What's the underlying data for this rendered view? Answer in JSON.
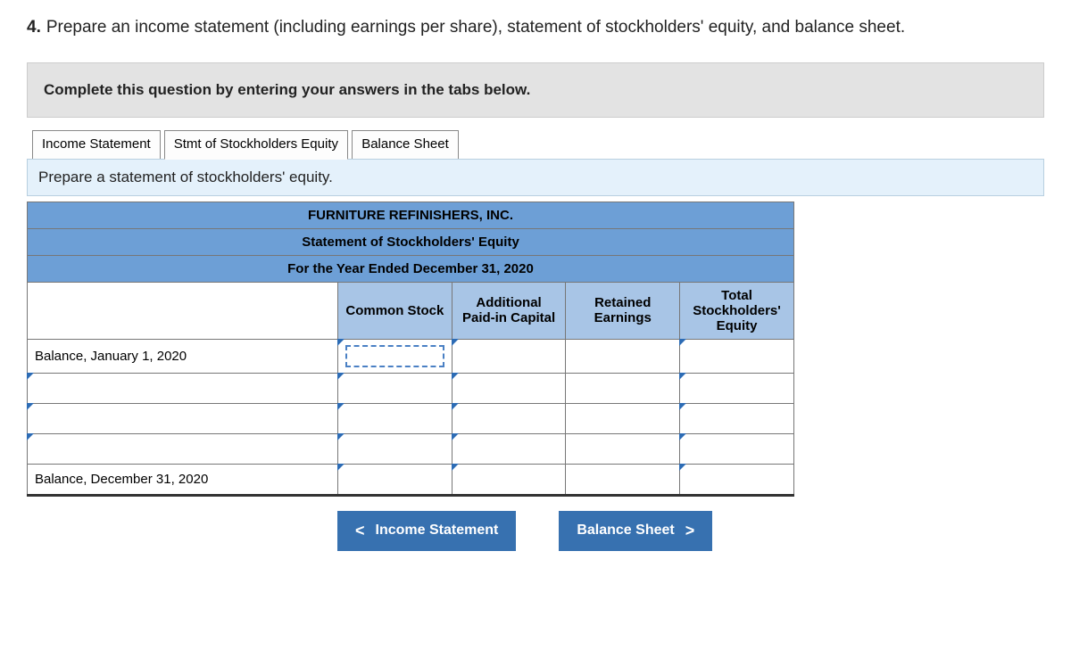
{
  "question": {
    "number": "4.",
    "text": "Prepare an income statement (including earnings per share), statement of stockholders' equity, and balance sheet."
  },
  "instruction_bar": "Complete this question by entering your answers in the tabs below.",
  "tabs": [
    {
      "label": "Income Statement",
      "active": false
    },
    {
      "label": "Stmt of Stockholders Equity",
      "active": true
    },
    {
      "label": "Balance Sheet",
      "active": false
    }
  ],
  "sub_instruction": "Prepare a statement of stockholders' equity.",
  "table": {
    "title_company": "FURNITURE REFINISHERS, INC.",
    "title_statement": "Statement of Stockholders' Equity",
    "title_period": "For the Year Ended December 31, 2020",
    "columns": [
      "Common Stock",
      "Additional Paid-in Capital",
      "Retained Earnings",
      "Total Stockholders' Equity"
    ],
    "rows": [
      {
        "label": "Balance, January 1, 2020",
        "focus_col": 0
      },
      {
        "label": ""
      },
      {
        "label": ""
      },
      {
        "label": ""
      },
      {
        "label": "Balance, December 31, 2020",
        "final": true
      }
    ]
  },
  "nav": {
    "prev_label": "Income Statement",
    "next_label": "Balance Sheet"
  },
  "colors": {
    "tab_bg": "#fdfdfd",
    "header_blue": "#6d9fd6",
    "col_blue": "#a8c5e6",
    "button_blue": "#3771b0",
    "sub_bg": "#e4f1fb",
    "instruction_bg": "#e3e3e3"
  },
  "col_widths": {
    "label": 350,
    "data": 128
  }
}
